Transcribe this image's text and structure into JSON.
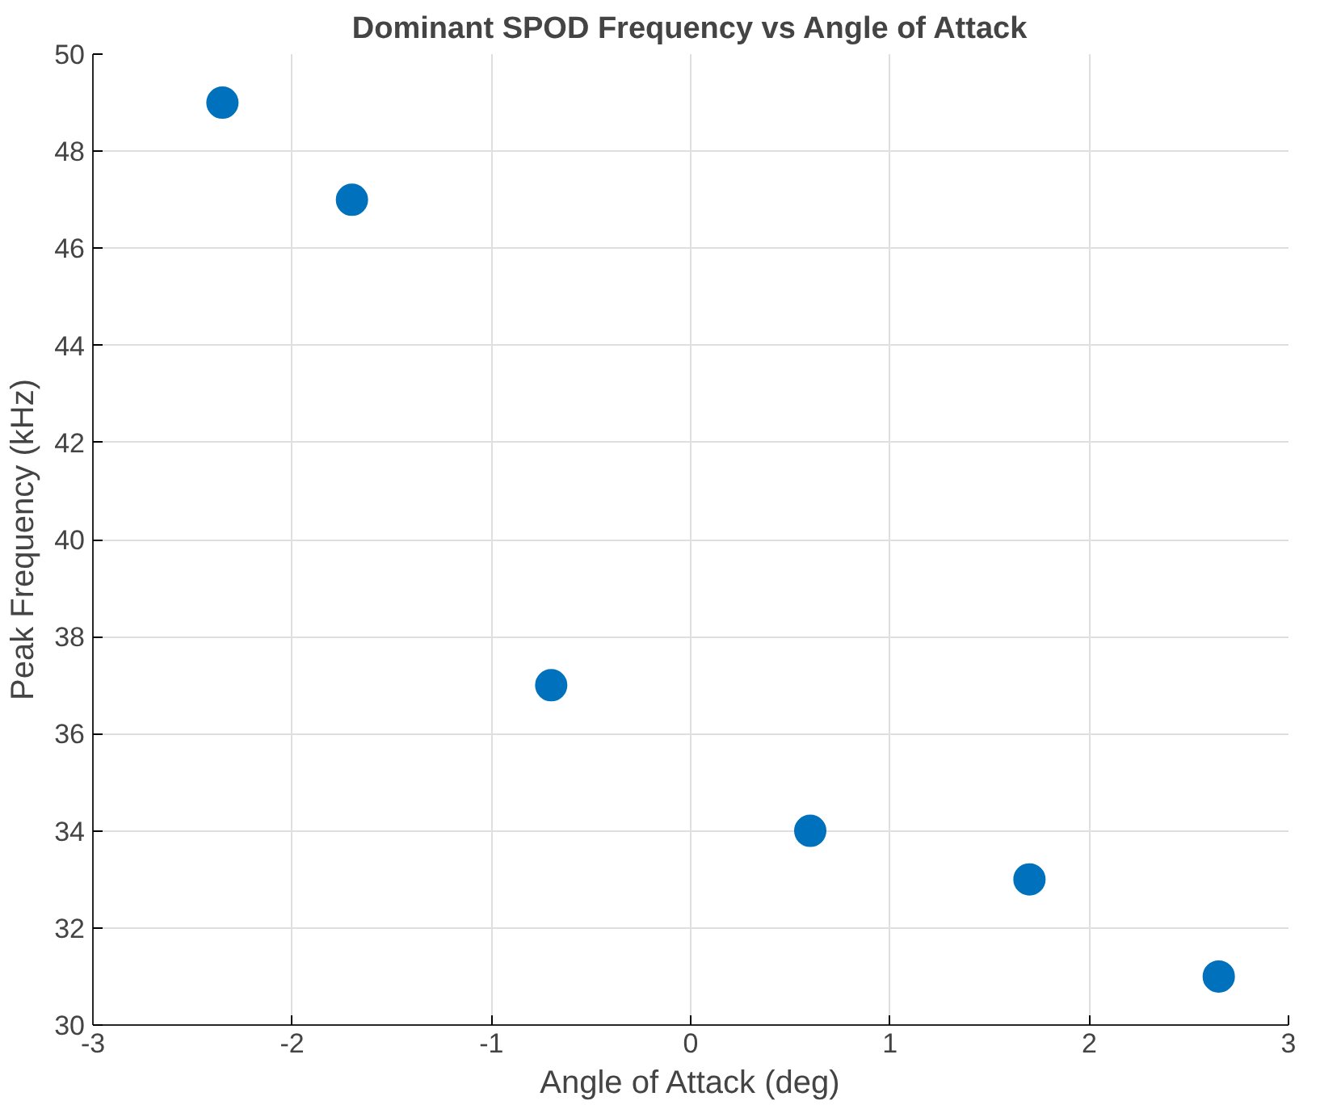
{
  "chart_data": {
    "type": "scatter",
    "title": "Dominant SPOD Frequency vs Angle of Attack",
    "xlabel": "Angle of Attack (deg)",
    "ylabel": "Peak Frequency (kHz)",
    "x": [
      -2.35,
      -1.7,
      -0.7,
      0.6,
      1.7,
      2.65
    ],
    "series": [
      {
        "color": "#0072bd",
        "values": [
          49,
          47,
          37,
          34,
          33,
          31
        ]
      }
    ],
    "xlim": [
      -3,
      3
    ],
    "xticks": [
      -3,
      -2,
      -1,
      0,
      1,
      2,
      3
    ],
    "ylim": [
      30,
      50
    ],
    "yticks": [
      30,
      32,
      34,
      36,
      38,
      40,
      42,
      44,
      46,
      48,
      50
    ],
    "grid": true,
    "marker": "circle"
  }
}
